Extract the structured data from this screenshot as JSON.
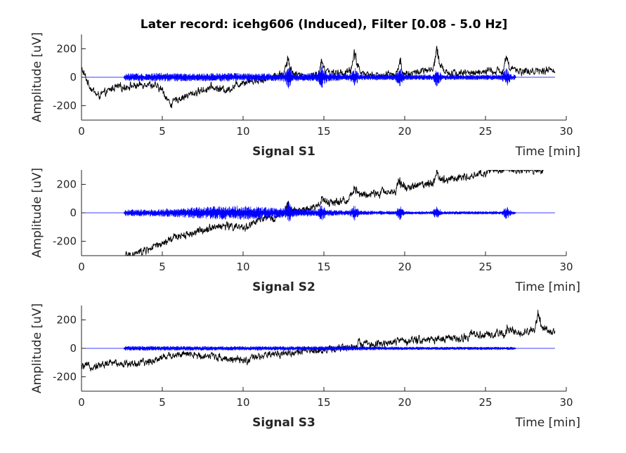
{
  "title": "Later record: icehg606 (Induced), Filter [0.08 - 5.0 Hz]",
  "chart_data": [
    {
      "type": "line",
      "subtitle": "Signal S1",
      "xlabel": "Time [min]",
      "ylabel": "Amplitude [uV]",
      "xlim": [
        0,
        30
      ],
      "ylim": [
        -300,
        300
      ],
      "xticks": [
        0,
        5,
        10,
        15,
        20,
        25,
        30
      ],
      "yticks": [
        -200,
        0,
        200
      ],
      "grid": false,
      "series": [
        {
          "color": "#000000",
          "style": "raw",
          "x": [
            0,
            0.5,
            1,
            1.5,
            2,
            2.5,
            3,
            3.5,
            4,
            4.5,
            5,
            5.5,
            6,
            7,
            8,
            9,
            10,
            11,
            12,
            12.5,
            13,
            14,
            15,
            16,
            17,
            18,
            19,
            20,
            21,
            22,
            23,
            24,
            25,
            26,
            27,
            28,
            29,
            29.3
          ],
          "y": [
            60,
            -60,
            -130,
            -110,
            -70,
            -70,
            -60,
            -60,
            -40,
            -60,
            -90,
            -190,
            -150,
            -110,
            -70,
            -90,
            -30,
            -20,
            10,
            30,
            20,
            10,
            20,
            30,
            40,
            10,
            20,
            20,
            40,
            50,
            30,
            30,
            40,
            40,
            40,
            40,
            50,
            50
          ],
          "spikes": [
            {
              "t": 12.8,
              "amp": 150
            },
            {
              "t": 14.9,
              "amp": 130
            },
            {
              "t": 16.9,
              "amp": 190
            },
            {
              "t": 19.7,
              "amp": 130
            },
            {
              "t": 22.0,
              "amp": 190
            },
            {
              "t": 26.3,
              "amp": 130
            }
          ]
        },
        {
          "color": "#0000ff",
          "style": "emg",
          "x": [
            0,
            2.6,
            2.7,
            5,
            7,
            9,
            11,
            12.5,
            13,
            15,
            17,
            19,
            21,
            23,
            25,
            26.8,
            26.9,
            29.3
          ],
          "y": [
            0,
            0,
            25,
            30,
            25,
            30,
            25,
            30,
            25,
            30,
            20,
            20,
            18,
            18,
            18,
            20,
            0,
            0
          ],
          "bursts": [
            {
              "t": 12.8,
              "amp": 60
            },
            {
              "t": 14.9,
              "amp": 60
            },
            {
              "t": 16.9,
              "amp": 50
            },
            {
              "t": 19.7,
              "amp": 50
            },
            {
              "t": 22.0,
              "amp": 50
            },
            {
              "t": 26.3,
              "amp": 50
            }
          ]
        }
      ]
    },
    {
      "type": "line",
      "subtitle": "Signal S2",
      "xlabel": "Time [min]",
      "ylabel": "Amplitude [uV]",
      "xlim": [
        0,
        30
      ],
      "ylim": [
        -300,
        300
      ],
      "xticks": [
        0,
        5,
        10,
        15,
        20,
        25,
        30
      ],
      "yticks": [
        -200,
        0,
        200
      ],
      "grid": false,
      "series": [
        {
          "color": "#000000",
          "style": "raw",
          "x": [
            2.65,
            3,
            4,
            5,
            6,
            7,
            8,
            9,
            10,
            11,
            12,
            13,
            14,
            15,
            16,
            17,
            18,
            19,
            20,
            21,
            22,
            23,
            24,
            25,
            26,
            27,
            28,
            28.6
          ],
          "y": [
            -300,
            -300,
            -260,
            -220,
            -160,
            -140,
            -100,
            -90,
            -110,
            -50,
            -30,
            10,
            30,
            60,
            80,
            120,
            130,
            150,
            170,
            200,
            220,
            240,
            260,
            280,
            300,
            300,
            300,
            300
          ],
          "spikes": [
            {
              "t": 12.8,
              "amp": 80
            },
            {
              "t": 14.9,
              "amp": 70
            },
            {
              "t": 16.9,
              "amp": 80
            },
            {
              "t": 19.7,
              "amp": 80
            },
            {
              "t": 22.0,
              "amp": 80
            },
            {
              "t": 26.3,
              "amp": 50
            }
          ]
        },
        {
          "color": "#0000ff",
          "style": "emg",
          "x": [
            0,
            2.6,
            2.7,
            4,
            6,
            8,
            10,
            12,
            13,
            15,
            17,
            19,
            21,
            23,
            25,
            26.8,
            26.9,
            29.3
          ],
          "y": [
            0,
            0,
            22,
            24,
            30,
            45,
            50,
            35,
            30,
            22,
            15,
            12,
            10,
            10,
            10,
            12,
            0,
            0
          ],
          "bursts": [
            {
              "t": 12.8,
              "amp": 50
            },
            {
              "t": 14.9,
              "amp": 40
            },
            {
              "t": 16.9,
              "amp": 40
            },
            {
              "t": 19.7,
              "amp": 40
            },
            {
              "t": 22.0,
              "amp": 40
            },
            {
              "t": 26.3,
              "amp": 40
            }
          ]
        }
      ]
    },
    {
      "type": "line",
      "subtitle": "Signal S3",
      "xlabel": "Time [min]",
      "ylabel": "Amplitude [uV]",
      "xlim": [
        0,
        30
      ],
      "ylim": [
        -300,
        300
      ],
      "xticks": [
        0,
        5,
        10,
        15,
        20,
        25,
        30
      ],
      "yticks": [
        -200,
        0,
        200
      ],
      "grid": false,
      "series": [
        {
          "color": "#000000",
          "style": "raw",
          "x": [
            0,
            1,
            2,
            3,
            4,
            5,
            6,
            7,
            8,
            9,
            10,
            11,
            12,
            13,
            14,
            15,
            16,
            17,
            18,
            19,
            20,
            21,
            22,
            23,
            24,
            25,
            26,
            27,
            28,
            29,
            29.3
          ],
          "y": [
            -130,
            -120,
            -100,
            -110,
            -100,
            -60,
            -40,
            -50,
            -50,
            -70,
            -90,
            -60,
            -40,
            -30,
            -20,
            -10,
            0,
            20,
            30,
            40,
            50,
            60,
            60,
            70,
            80,
            90,
            100,
            110,
            120,
            120,
            120
          ],
          "spikes": [
            {
              "t": 17.2,
              "amp": 40
            },
            {
              "t": 24.2,
              "amp": 40
            },
            {
              "t": 26.4,
              "amp": 60
            },
            {
              "t": 28.3,
              "amp": 170
            }
          ]
        },
        {
          "color": "#0000ff",
          "style": "emg",
          "x": [
            0,
            2.6,
            2.7,
            5,
            8,
            10,
            12,
            14,
            16,
            18,
            20,
            22,
            24,
            26,
            26.8,
            26.9,
            29.3
          ],
          "y": [
            0,
            0,
            15,
            15,
            14,
            14,
            14,
            14,
            15,
            12,
            10,
            10,
            10,
            10,
            10,
            0,
            0
          ],
          "bursts": []
        }
      ]
    }
  ]
}
